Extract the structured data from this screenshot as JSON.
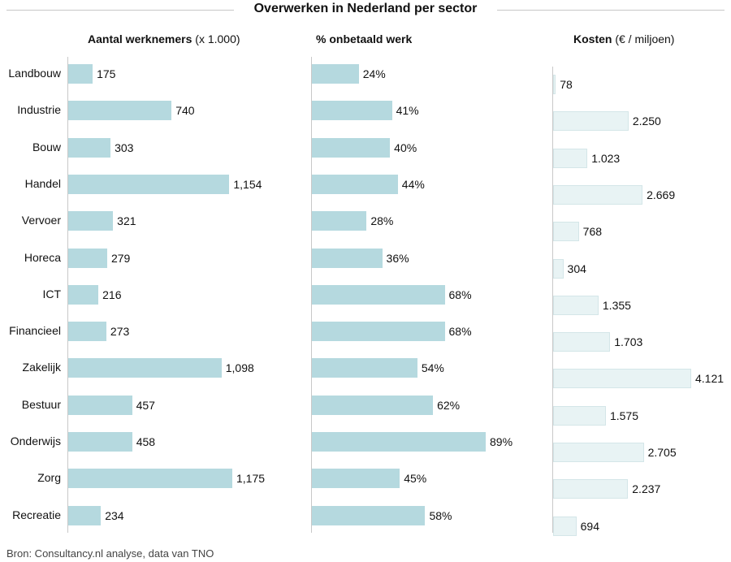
{
  "chart_data": {
    "type": "bar",
    "title": "Overwerken in Nederland per sector",
    "categories": [
      "Landbouw",
      "Industrie",
      "Bouw",
      "Handel",
      "Vervoer",
      "Horeca",
      "ICT",
      "Financieel",
      "Zakelijk",
      "Bestuur",
      "Onderwijs",
      "Zorg",
      "Recreatie"
    ],
    "panels": [
      {
        "header": "Aantal werknemers",
        "header_unit": "(x 1.000)",
        "values": [
          175,
          740,
          303,
          1154,
          321,
          279,
          216,
          273,
          1098,
          457,
          458,
          1175,
          234
        ],
        "labels": [
          "175",
          "740",
          "303",
          "1,154",
          "321",
          "279",
          "216",
          "273",
          "1,098",
          "457",
          "458",
          "1,175",
          "234"
        ],
        "color": "#b5d9df"
      },
      {
        "header": "% onbetaald werk",
        "header_unit": "",
        "values": [
          24,
          41,
          40,
          44,
          28,
          36,
          68,
          68,
          54,
          62,
          89,
          45,
          58
        ],
        "labels": [
          "24%",
          "41%",
          "40%",
          "44%",
          "28%",
          "36%",
          "68%",
          "68%",
          "54%",
          "62%",
          "89%",
          "45%",
          "58%"
        ],
        "color": "#b5d9df"
      },
      {
        "header": "Kosten",
        "header_unit": "(€ / miljoen)",
        "values": [
          78,
          2250,
          1023,
          2669,
          768,
          304,
          1355,
          1703,
          4121,
          1575,
          2705,
          2237,
          694
        ],
        "labels": [
          "78",
          "2.250",
          "1.023",
          "2.669",
          "768",
          "304",
          "1.355",
          "1.703",
          "4.121",
          "1.575",
          "2.705",
          "2.237",
          "694"
        ],
        "color": "#e8f3f4"
      }
    ]
  },
  "source": "Bron: Consultancy.nl analyse, data van TNO"
}
